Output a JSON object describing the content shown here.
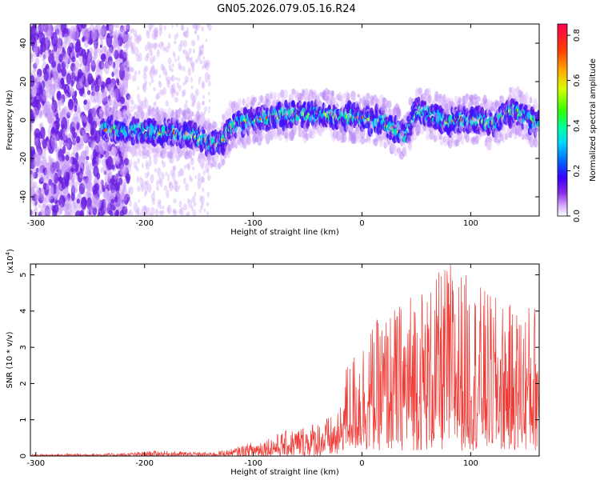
{
  "title": "GN05.2026.079.05.16.R24",
  "chart_data": [
    {
      "type": "heatmap",
      "id": "spectrogram",
      "xlabel": "Height of straight line (km)",
      "ylabel": "Frequency (Hz)",
      "xlim": [
        -305,
        163
      ],
      "ylim": [
        -50,
        50
      ],
      "xticks": [
        -300,
        -200,
        -100,
        0,
        100
      ],
      "yticks": [
        -40,
        -20,
        0,
        20,
        40
      ],
      "colorbar": {
        "label": "Normalized spectral amplitude",
        "range": [
          0,
          0.85
        ],
        "ticks": [
          0.0,
          0.2,
          0.4,
          0.6,
          0.8
        ]
      },
      "ridge": {
        "x": [
          -230,
          -200,
          -160,
          -140,
          -130,
          -120,
          -100,
          -80,
          -60,
          -40,
          -20,
          0,
          20,
          40,
          50,
          60,
          80,
          100,
          120,
          140,
          160
        ],
        "y": [
          -5,
          -6,
          -7,
          -12,
          -13,
          -3,
          0,
          2,
          3,
          3,
          2,
          1,
          -1,
          -8,
          5,
          3,
          -1,
          1,
          -2,
          5,
          -2
        ]
      }
    },
    {
      "type": "area",
      "id": "snr",
      "xlabel": "Height of straight line (km)",
      "ylabel": "SNR (10 * v/v)",
      "multiplier": "(x10",
      "multiplier_exp": "4",
      "xlim": [
        -305,
        163
      ],
      "ylim": [
        0,
        5.3
      ],
      "xticks": [
        -300,
        -200,
        -100,
        0,
        100
      ],
      "yticks": [
        0,
        1,
        2,
        3,
        4,
        5
      ],
      "color": "#ef3b36",
      "envelope": {
        "x": [
          -305,
          -220,
          -190,
          -140,
          -120,
          -100,
          -80,
          -60,
          -40,
          -20,
          -15,
          -10,
          0,
          20,
          40,
          50,
          60,
          80,
          100,
          120,
          140,
          163
        ],
        "y": [
          0.05,
          0.08,
          0.15,
          0.1,
          0.2,
          0.4,
          0.6,
          0.8,
          1.0,
          1.2,
          2.4,
          2.6,
          3.2,
          3.8,
          4.2,
          4.8,
          4.5,
          5.3,
          4.8,
          4.3,
          4.0,
          4.2
        ]
      }
    }
  ]
}
